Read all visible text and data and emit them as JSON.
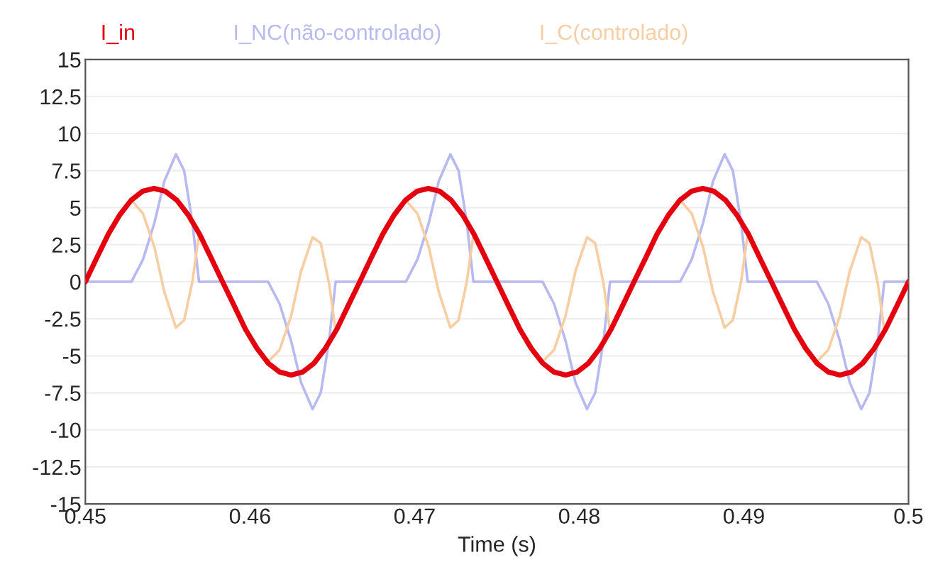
{
  "chart_data": {
    "type": "line",
    "xlabel": "Time (s)",
    "legend": "top left",
    "grid": "y",
    "xlim": [
      0.45,
      0.5
    ],
    "xticks": [
      0.45,
      0.46,
      0.47,
      0.48,
      0.49,
      0.5
    ],
    "ylim": [
      -15,
      15
    ],
    "yticks": [
      -15,
      -12.5,
      -10,
      -7.5,
      -5,
      -2.5,
      0,
      2.5,
      5,
      7.5,
      10,
      12.5,
      15
    ],
    "series": [
      {
        "name": "I_NC(não-controlado)",
        "color": "#b9b9f2",
        "x": [
          0.45,
          0.4514,
          0.4528,
          0.4535,
          0.4542,
          0.4548,
          0.4555,
          0.456,
          0.4565,
          0.4569,
          0.4583,
          0.4597,
          0.4611,
          0.4618,
          0.4625,
          0.4631,
          0.4638,
          0.4643,
          0.4648,
          0.4652,
          0.46667,
          0.46807,
          0.46947,
          0.47017,
          0.47087,
          0.47147,
          0.47217,
          0.47267,
          0.47317,
          0.47357,
          0.47497,
          0.47637,
          0.47777,
          0.47847,
          0.47917,
          0.47977,
          0.48047,
          0.48097,
          0.48147,
          0.48187,
          0.48333,
          0.48473,
          0.48613,
          0.48683,
          0.48753,
          0.48813,
          0.48883,
          0.48933,
          0.48983,
          0.49023,
          0.49163,
          0.49303,
          0.49443,
          0.49513,
          0.49583,
          0.49643,
          0.49713,
          0.49763,
          0.49813,
          0.49853,
          0.5
        ],
        "values": [
          0,
          0,
          0,
          1.5,
          4,
          6.8,
          8.6,
          7.5,
          4,
          0,
          0,
          0,
          0,
          -1.5,
          -4,
          -6.8,
          -8.6,
          -7.5,
          -4,
          0,
          0,
          0,
          0,
          1.5,
          4,
          6.8,
          8.6,
          7.5,
          4,
          0,
          0,
          0,
          0,
          -1.5,
          -4,
          -6.8,
          -8.6,
          -7.5,
          -4,
          0,
          0,
          0,
          0,
          1.5,
          4,
          6.8,
          8.6,
          7.5,
          4,
          0,
          0,
          0,
          0,
          -1.5,
          -4,
          -6.8,
          -8.6,
          -7.5,
          -4,
          0,
          0
        ]
      },
      {
        "name": "I_C(controlado)",
        "color": "#f9cda2",
        "x": [
          0.45,
          0.4514,
          0.4528,
          0.4535,
          0.4542,
          0.4548,
          0.4555,
          0.456,
          0.4565,
          0.4569,
          0.4583,
          0.4597,
          0.4611,
          0.4618,
          0.4625,
          0.4631,
          0.4638,
          0.4643,
          0.4648,
          0.4652,
          0.46667,
          0.46807,
          0.46947,
          0.47017,
          0.47087,
          0.47147,
          0.47217,
          0.47267,
          0.47317,
          0.47357,
          0.47497,
          0.47637,
          0.47777,
          0.47847,
          0.47917,
          0.47977,
          0.48047,
          0.48097,
          0.48147,
          0.48187,
          0.48333,
          0.48473,
          0.48613,
          0.48683,
          0.48753,
          0.48813,
          0.48883,
          0.48933,
          0.48983,
          0.49023,
          0.49163,
          0.49303,
          0.49443,
          0.49513,
          0.49583,
          0.49643,
          0.49713,
          0.49763,
          0.49813,
          0.49853,
          0.5
        ],
        "values": [
          0,
          3.2,
          5.5,
          4.6,
          2.3,
          -0.7,
          -3.1,
          -2.6,
          0.0,
          3.2,
          0.1,
          -3.1,
          -5.4,
          -4.6,
          -2.3,
          0.7,
          3.0,
          2.6,
          -0.1,
          -3.3,
          0,
          3.2,
          5.5,
          4.6,
          2.3,
          -0.7,
          -3.1,
          -2.6,
          0.0,
          3.2,
          0.1,
          -3.1,
          -5.4,
          -4.6,
          -2.3,
          0.7,
          3.0,
          2.6,
          -0.1,
          -3.3,
          0,
          3.2,
          5.5,
          4.6,
          2.3,
          -0.7,
          -3.1,
          -2.6,
          0.0,
          3.2,
          0.1,
          -3.1,
          -5.4,
          -4.6,
          -2.3,
          0.7,
          3.0,
          2.6,
          -0.1,
          -3.3,
          0
        ]
      },
      {
        "name": "I_in",
        "color": "#e3000f",
        "x": [
          0.45,
          0.45069,
          0.45139,
          0.45208,
          0.45278,
          0.45347,
          0.45417,
          0.45486,
          0.45556,
          0.45625,
          0.45694,
          0.45764,
          0.45833,
          0.45903,
          0.45972,
          0.46042,
          0.46111,
          0.46181,
          0.4625,
          0.46319,
          0.46389,
          0.46458,
          0.46528,
          0.46597,
          0.46667,
          0.46736,
          0.46806,
          0.46875,
          0.46944,
          0.47014,
          0.47083,
          0.47153,
          0.47222,
          0.47292,
          0.47361,
          0.47431,
          0.475,
          0.47569,
          0.47639,
          0.47708,
          0.47778,
          0.47847,
          0.47917,
          0.47986,
          0.48056,
          0.48125,
          0.48194,
          0.48264,
          0.48333,
          0.48403,
          0.48472,
          0.48542,
          0.48611,
          0.48681,
          0.4875,
          0.48819,
          0.48889,
          0.48958,
          0.49028,
          0.49097,
          0.49167,
          0.49236,
          0.49306,
          0.49375,
          0.49444,
          0.49514,
          0.49583,
          0.49653,
          0.49722,
          0.49792,
          0.49861,
          0.49931,
          0.5
        ],
        "values": [
          0,
          1.6,
          3.2,
          4.5,
          5.5,
          6.1,
          6.3,
          6.1,
          5.5,
          4.5,
          3.2,
          1.6,
          0,
          -1.6,
          -3.2,
          -4.5,
          -5.5,
          -6.1,
          -6.3,
          -6.1,
          -5.5,
          -4.5,
          -3.2,
          -1.6,
          0,
          1.6,
          3.2,
          4.5,
          5.5,
          6.1,
          6.3,
          6.1,
          5.5,
          4.5,
          3.2,
          1.6,
          0,
          -1.6,
          -3.2,
          -4.5,
          -5.5,
          -6.1,
          -6.3,
          -6.1,
          -5.5,
          -4.5,
          -3.2,
          -1.6,
          0,
          1.6,
          3.2,
          4.5,
          5.5,
          6.1,
          6.3,
          6.1,
          5.5,
          4.5,
          3.2,
          1.6,
          0,
          -1.6,
          -3.2,
          -4.5,
          -5.5,
          -6.1,
          -6.3,
          -6.1,
          -5.5,
          -4.5,
          -3.2,
          -1.6,
          0
        ]
      }
    ]
  }
}
